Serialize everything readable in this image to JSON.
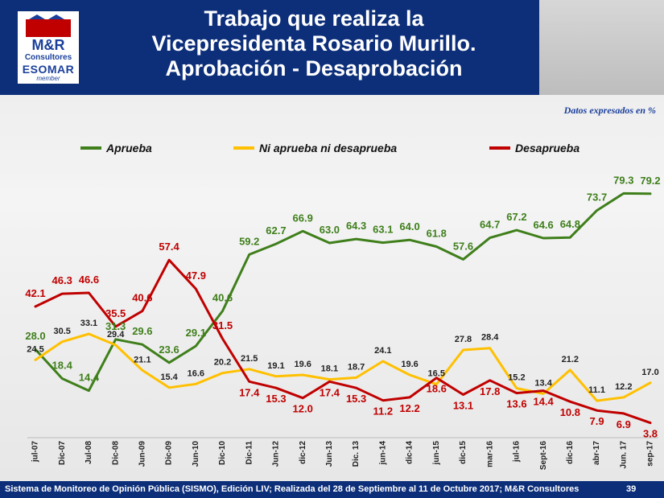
{
  "header": {
    "title_lines": [
      "Trabajo que realiza la",
      "Vicepresidenta Rosario Murillo.",
      "Aprobación - Desaprobación"
    ],
    "logo_lines": [
      "Consultores",
      "ESOMAR",
      "member"
    ],
    "logo_mark": "M&R"
  },
  "unit_note": "Datos expresados en  %",
  "footer": {
    "text": "Sistema de Monitoreo de Opinión Pública (SISMO), Edición LIV; Realizada del 28 de Septiembre al 11 de Octubre 2017; M&R Consultores",
    "page": "39"
  },
  "colors": {
    "aprueba": "#3f7f1b",
    "ni": "#ffc000",
    "desaprueba": "#c00000",
    "header": "#0d2f7a"
  },
  "chart_data": {
    "type": "line",
    "categories": [
      "jul-07",
      "Dic-07",
      "Jul-08",
      "Dic-08",
      "Jun-09",
      "Dic-09",
      "Jun-10",
      "Dic-10",
      "Dic-11",
      "Jun-12",
      "dic-12",
      "Jun-13",
      "Dic. 13",
      "jun-14",
      "dic-14",
      "jun-15",
      "dic-15",
      "mar-16",
      "jul-16",
      "Sept-16",
      "dic-16",
      "abr-17",
      "Jun. 17",
      "sep-17"
    ],
    "series": [
      {
        "name": "Aprueba",
        "values": [
          28.0,
          18.4,
          14.4,
          31.3,
          29.6,
          23.6,
          29.1,
          40.6,
          59.2,
          62.7,
          66.9,
          63.0,
          64.3,
          63.1,
          64.0,
          61.8,
          57.6,
          64.7,
          67.2,
          64.6,
          64.8,
          73.7,
          79.3,
          79.2
        ]
      },
      {
        "name": "Ni aprueba ni desaprueba",
        "values": [
          24.5,
          30.5,
          33.1,
          29.4,
          21.1,
          15.4,
          16.6,
          20.2,
          21.5,
          19.1,
          19.6,
          18.1,
          18.7,
          24.1,
          19.6,
          16.5,
          27.8,
          28.4,
          15.2,
          13.4,
          21.2,
          11.1,
          12.2,
          17.0
        ]
      },
      {
        "name": "Desaprueba",
        "values": [
          42.1,
          46.3,
          46.6,
          35.5,
          40.6,
          57.4,
          47.9,
          31.5,
          17.4,
          15.3,
          12.0,
          17.4,
          15.3,
          11.2,
          12.2,
          18.6,
          13.1,
          17.8,
          13.6,
          14.4,
          10.8,
          7.9,
          6.9,
          3.8
        ]
      }
    ],
    "ylim": [
      0,
      90
    ],
    "grid": false,
    "legend_position": "top"
  }
}
